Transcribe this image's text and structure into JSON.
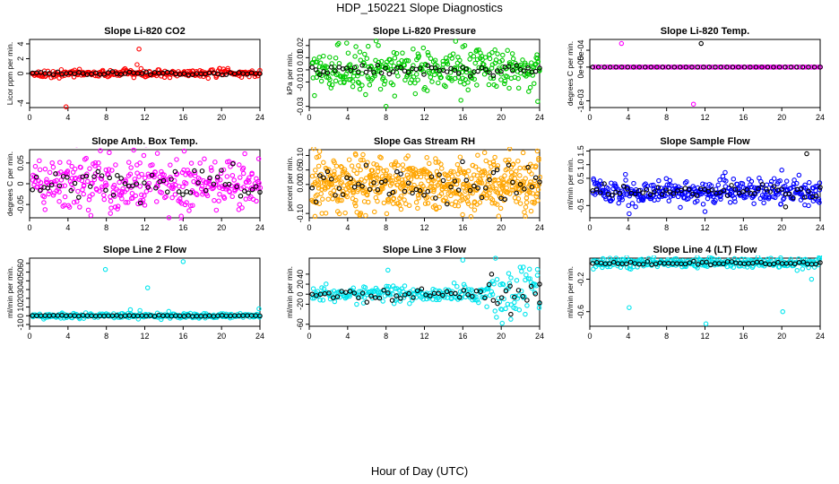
{
  "title": "HDP_150221  Slope Diagnostics",
  "xlabel": "Hour of Day (UTC)",
  "colors": {
    "co2": "#ff0000",
    "pressure": "#00cc00",
    "temp": "#ff00ff",
    "ambbox": "#ff00ff",
    "rh": "#ffa500",
    "sampleflow": "#0000ff",
    "line2": "#00e5ee",
    "line3": "#00e5ee",
    "line4": "#00e5ee",
    "overlay": "#000000"
  },
  "chart_data": [
    {
      "id": "co2",
      "type": "scatter",
      "title": "Slope Li-820 CO2",
      "ylabel": "Licor ppm per min.",
      "xlim": [
        0,
        24
      ],
      "ylim": [
        -4.6,
        4.6
      ],
      "xticks": [
        0,
        4,
        8,
        12,
        16,
        20,
        24
      ],
      "yticks": [
        -4,
        0,
        2,
        4
      ],
      "series": [
        {
          "name": "all",
          "color_key": "co2",
          "spread": 0.25,
          "n": 260,
          "outliers": [
            [
              3.8,
              -4.5
            ],
            [
              11.4,
              3.3
            ],
            [
              11.2,
              1.2
            ],
            [
              20.2,
              0.6
            ]
          ]
        },
        {
          "name": "subset",
          "color_key": "overlay",
          "spread": 0.15,
          "n": 55,
          "outliers": []
        }
      ]
    },
    {
      "id": "pressure",
      "type": "scatter",
      "title": "Slope Li-820 Pressure",
      "ylabel": "kPa per min.",
      "xlim": [
        0,
        24
      ],
      "ylim": [
        -0.031,
        0.025
      ],
      "xticks": [
        0,
        4,
        8,
        12,
        16,
        20,
        24
      ],
      "yticks": [
        -0.03,
        -0.01,
        0.0,
        0.01,
        0.02
      ],
      "series": [
        {
          "name": "all",
          "color_key": "pressure",
          "spread": 0.008,
          "n": 340,
          "outliers": [
            [
              8,
              -0.03
            ],
            [
              15.8,
              -0.025
            ],
            [
              23.8,
              -0.026
            ],
            [
              3.9,
              0.022
            ],
            [
              7.2,
              0.02
            ],
            [
              16,
              0.019
            ]
          ]
        },
        {
          "name": "subset",
          "color_key": "overlay",
          "spread": 0.003,
          "n": 60,
          "outliers": []
        }
      ]
    },
    {
      "id": "temp",
      "type": "scatter",
      "title": "Slope Li-820 Temp.",
      "ylabel": "degrees C per min.",
      "xlim": [
        0,
        24
      ],
      "ylim": [
        -0.0012,
        0.00082
      ],
      "xticks": [
        0,
        4,
        8,
        12,
        16,
        20,
        24
      ],
      "yticks": [
        -0.001,
        0.0,
        0.0005
      ],
      "ytick_labels": [
        "-1e-03",
        "0e+00",
        "5e-04"
      ],
      "series": [
        {
          "name": "all",
          "color_key": "temp",
          "spread": 0.0,
          "n": 120,
          "outliers": [
            [
              3.3,
              0.0007
            ],
            [
              10.8,
              -0.0011
            ]
          ]
        },
        {
          "name": "subset",
          "color_key": "overlay",
          "spread": 0.0,
          "n": 40,
          "outliers": [
            [
              11.6,
              0.0007
            ]
          ]
        }
      ]
    },
    {
      "id": "ambbox",
      "type": "scatter",
      "title": "Slope Amb. Box Temp.",
      "ylabel": "degrees C per min.",
      "xlim": [
        0,
        24
      ],
      "ylim": [
        -0.082,
        0.082
      ],
      "xticks": [
        0,
        4,
        8,
        12,
        16,
        20,
        24
      ],
      "yticks": [
        -0.05,
        0.0,
        0.05
      ],
      "series": [
        {
          "name": "all",
          "color_key": "ambbox",
          "spread": 0.035,
          "n": 360,
          "outliers": [
            [
              8.3,
              0.075
            ],
            [
              15.8,
              -0.078
            ],
            [
              11.9,
              0.068
            ]
          ]
        },
        {
          "name": "subset",
          "color_key": "overlay",
          "spread": 0.025,
          "n": 60,
          "outliers": []
        }
      ]
    },
    {
      "id": "rh",
      "type": "scatter",
      "title": "Slope Gas Stream RH",
      "ylabel": "percent per min.",
      "xlim": [
        0,
        24
      ],
      "ylim": [
        -0.115,
        0.12
      ],
      "xticks": [
        0,
        4,
        8,
        12,
        16,
        20,
        24
      ],
      "yticks": [
        -0.1,
        0.0,
        0.05,
        0.1
      ],
      "ytick_labels": [
        "-0.10",
        "0.00",
        "0.05",
        "0.10"
      ],
      "series": [
        {
          "name": "all",
          "color_key": "rh",
          "spread": 0.045,
          "n": 600,
          "outliers": [
            [
              0.6,
              -0.11
            ],
            [
              23.9,
              0.09
            ]
          ]
        },
        {
          "name": "subset",
          "color_key": "overlay",
          "spread": 0.035,
          "n": 60,
          "outliers": []
        }
      ]
    },
    {
      "id": "sampleflow",
      "type": "scatter",
      "title": "Slope Sample Flow",
      "ylabel": "ml/min per min.",
      "xlim": [
        0,
        24
      ],
      "ylim": [
        -0.95,
        1.55
      ],
      "xticks": [
        0,
        4,
        8,
        12,
        16,
        20,
        24
      ],
      "yticks": [
        -0.5,
        0.5,
        1.0,
        1.5
      ],
      "ytick_labels": [
        "-0.5",
        "0.5",
        "1.0",
        "1.5"
      ],
      "series": [
        {
          "name": "all",
          "color_key": "sampleflow",
          "spread": 0.22,
          "n": 360,
          "outliers": [
            [
              4.1,
              -0.8
            ],
            [
              20,
              0.8
            ],
            [
              12,
              -0.72
            ]
          ]
        },
        {
          "name": "subset",
          "color_key": "overlay",
          "spread": 0.15,
          "n": 60,
          "outliers": [
            [
              22.6,
              1.4
            ],
            [
              20.4,
              -0.55
            ]
          ]
        }
      ]
    },
    {
      "id": "line2",
      "type": "scatter",
      "title": "Slope Line 2 Flow",
      "ylabel": "ml/min per min.",
      "xlim": [
        0,
        24
      ],
      "ylim": [
        -12,
        66
      ],
      "xticks": [
        0,
        4,
        8,
        12,
        16,
        20,
        24
      ],
      "yticks": [
        -10,
        0,
        10,
        20,
        30,
        40,
        50,
        60
      ],
      "series": [
        {
          "name": "all",
          "color_key": "line2",
          "spread": 1.5,
          "n": 260,
          "outliers": [
            [
              7.9,
              53
            ],
            [
              12.3,
              32
            ],
            [
              16,
              62
            ],
            [
              23.9,
              8
            ],
            [
              10.5,
              7
            ],
            [
              11.5,
              6
            ],
            [
              14.5,
              5
            ]
          ]
        },
        {
          "name": "subset",
          "color_key": "overlay",
          "spread": 0.4,
          "n": 55,
          "outliers": []
        }
      ]
    },
    {
      "id": "line3",
      "type": "scatter",
      "title": "Slope Line 3 Flow",
      "ylabel": "ml/min per min.",
      "xlim": [
        0,
        24
      ],
      "ylim": [
        -64,
        72
      ],
      "xticks": [
        0,
        4,
        8,
        12,
        16,
        20,
        24
      ],
      "yticks": [
        -60,
        -20,
        0,
        20,
        40
      ],
      "series": [
        {
          "name": "all",
          "color_key": "line3",
          "spread": 8,
          "n": 260,
          "outliers": [
            [
              8.2,
              48
            ],
            [
              16,
              68
            ],
            [
              20.1,
              -58
            ],
            [
              21,
              -50
            ],
            [
              22.5,
              -40
            ],
            [
              18.5,
              -25
            ]
          ]
        },
        {
          "name": "subset",
          "color_key": "overlay",
          "spread": 8,
          "n": 55,
          "outliers": [
            [
              19,
              40
            ],
            [
              21,
              -40
            ],
            [
              24,
              20
            ]
          ]
        }
      ]
    },
    {
      "id": "line4",
      "type": "scatter",
      "title": "Slope Line 4 (LT) Flow",
      "ylabel": "ml/min per min.",
      "xlim": [
        0,
        24
      ],
      "ylim": [
        -0.78,
        0.06
      ],
      "xticks": [
        0,
        4,
        8,
        12,
        16,
        20,
        24
      ],
      "yticks": [
        -0.6,
        -0.2
      ],
      "ytick_labels": [
        "-0.6",
        "-0.2"
      ],
      "series": [
        {
          "name": "all",
          "color_key": "line4",
          "spread": 0.03,
          "n": 300,
          "outliers": [
            [
              4.1,
              -0.55
            ],
            [
              12.1,
              -0.75
            ],
            [
              20.1,
              -0.6
            ],
            [
              23.1,
              -0.2
            ]
          ]
        },
        {
          "name": "subset",
          "color_key": "overlay",
          "spread": 0.015,
          "n": 55,
          "outliers": []
        }
      ]
    }
  ]
}
